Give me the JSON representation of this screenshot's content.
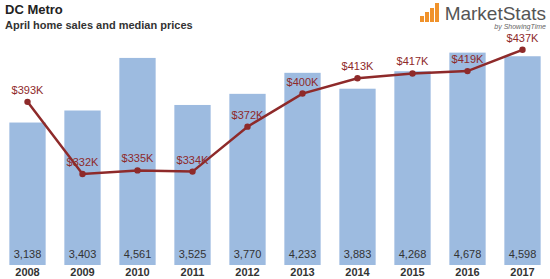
{
  "chart_data": {
    "type": "bar",
    "title": "DC Metro",
    "subtitle": "April home sales and median prices",
    "annotations": [
      "MarketStats",
      "by ShowingTime"
    ],
    "categories": [
      "2008",
      "2009",
      "2010",
      "2011",
      "2012",
      "2013",
      "2014",
      "2015",
      "2016",
      "2017"
    ],
    "series": [
      {
        "type": "bar",
        "color": "#9dbbe0",
        "values": [
          3138,
          3403,
          4561,
          3525,
          3770,
          4233,
          3883,
          4268,
          4678,
          4598
        ],
        "value_labels": [
          "3,138",
          "3,403",
          "4,561",
          "3,525",
          "3,770",
          "4,233",
          "3,883",
          "4,268",
          "4,678",
          "4,598"
        ],
        "data_labels": true
      },
      {
        "type": "line",
        "axis": "y2",
        "color": "#8e2a2a",
        "marker": "circle",
        "values": [
          393000,
          332000,
          335000,
          334000,
          372000,
          400000,
          413000,
          417000,
          419000,
          437000
        ],
        "value_labels": [
          "$393K",
          "$332K",
          "$335K",
          "$334K",
          "$372K",
          "$400K",
          "$413K",
          "$417K",
          "$419K",
          "$437K"
        ],
        "data_labels": true
      }
    ],
    "ylim": [
      0,
      5000
    ],
    "y2lim": [
      255000,
      447000
    ],
    "grid": false,
    "tick_labels": "x"
  }
}
